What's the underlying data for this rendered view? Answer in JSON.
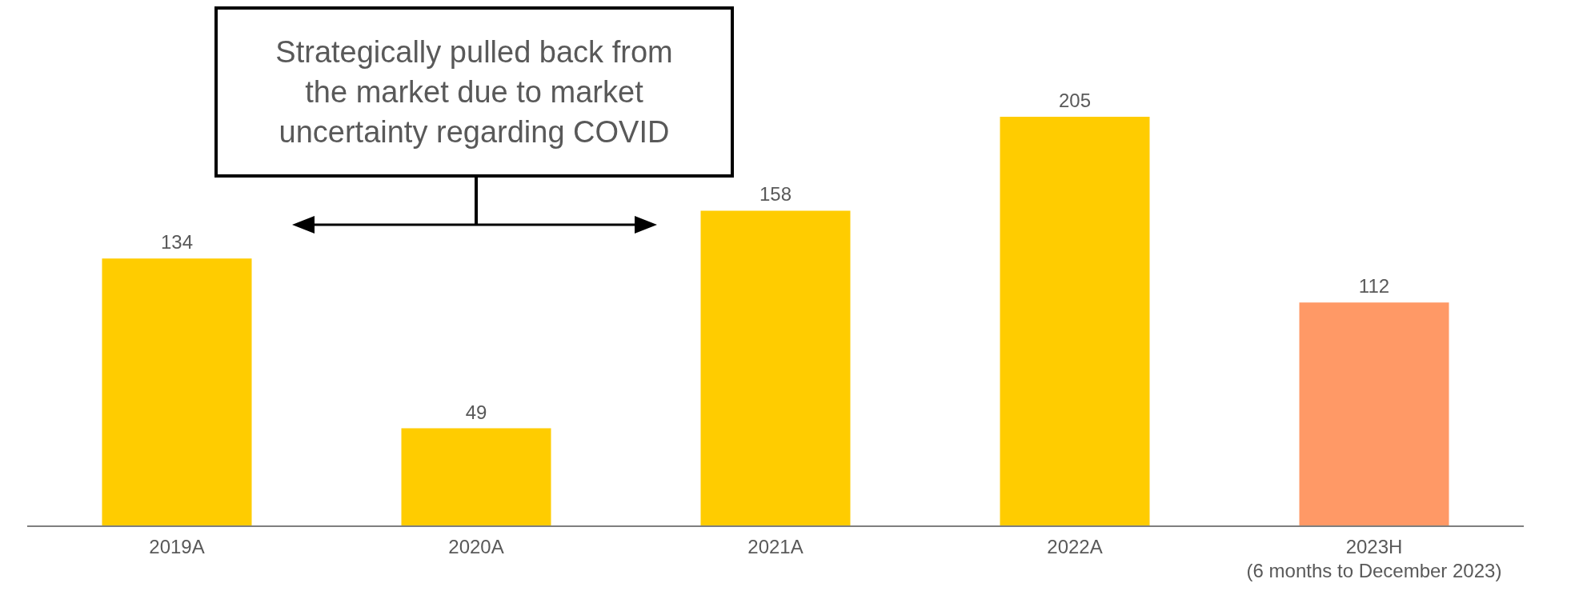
{
  "chart_data": {
    "type": "bar",
    "categories": [
      "2019A",
      "2020A",
      "2021A",
      "2022A",
      "2023H\n(6 months to December 2023)"
    ],
    "values": [
      134,
      49,
      158,
      205,
      112
    ],
    "colors": [
      "#ffcc00",
      "#ffcc00",
      "#ffcc00",
      "#ffcc00",
      "#ff9966"
    ],
    "data_labels": true,
    "annotations": [
      "Strategically pulled back from the market due to market uncertainty regarding COVID"
    ]
  }
}
